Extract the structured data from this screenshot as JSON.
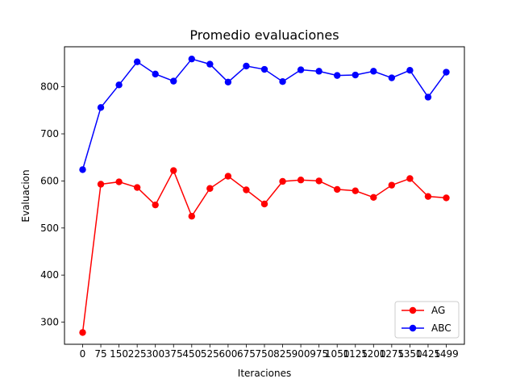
{
  "chart_data": {
    "type": "line",
    "title": "Promedio evaluaciones",
    "xlabel": "Iteraciones",
    "ylabel": "Evaluacion",
    "x": [
      0,
      75,
      150,
      225,
      300,
      375,
      450,
      525,
      600,
      675,
      750,
      825,
      900,
      975,
      1050,
      1125,
      1200,
      1275,
      1350,
      1425,
      1499
    ],
    "x_tick_labels": [
      "0",
      "75",
      "150",
      "225",
      "300",
      "375",
      "450",
      "525",
      "600",
      "675",
      "750",
      "825",
      "900",
      "975",
      "1050",
      "1125",
      "1200",
      "1275",
      "1350",
      "1425",
      "1499"
    ],
    "y_ticks": [
      300,
      400,
      500,
      600,
      700,
      800
    ],
    "ylim": [
      253,
      885
    ],
    "grid": false,
    "legend_position": "bottom-right",
    "series": [
      {
        "name": "AG",
        "color": "#ff0000",
        "values": [
          278,
          593,
          598,
          586,
          549,
          622,
          525,
          584,
          610,
          581,
          551,
          599,
          602,
          600,
          582,
          579,
          565,
          591,
          605,
          567,
          564
        ]
      },
      {
        "name": "ABC",
        "color": "#0000ff",
        "values": [
          624,
          756,
          804,
          853,
          827,
          812,
          859,
          848,
          810,
          844,
          837,
          811,
          836,
          833,
          824,
          825,
          833,
          819,
          835,
          778,
          831
        ]
      }
    ]
  }
}
